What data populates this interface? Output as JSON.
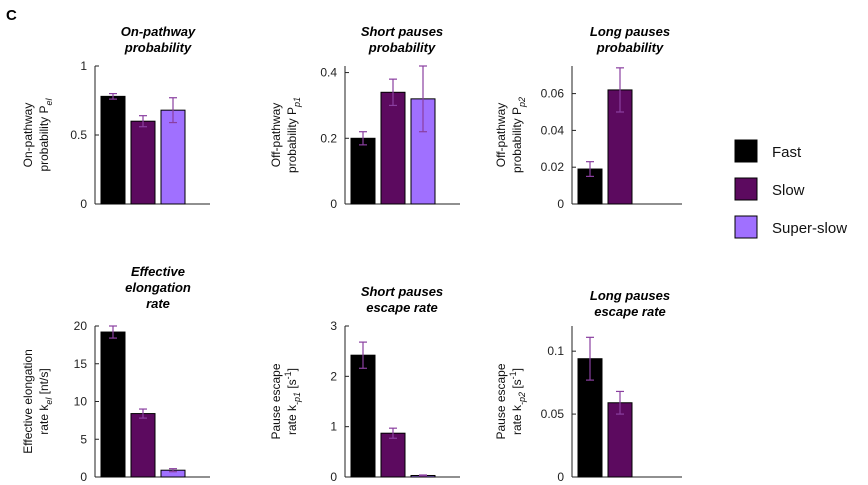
{
  "panel_label": "C",
  "colors": {
    "Fast": "#000000",
    "Slow": "#5c0a5f",
    "Super-slow": "#a070ff",
    "errorbar": "#8a3fa0"
  },
  "legend": [
    {
      "name": "Fast",
      "color": "#000000"
    },
    {
      "name": "Slow",
      "color": "#5c0a5f"
    },
    {
      "name": "Super-slow",
      "color": "#a070ff"
    }
  ],
  "chart_data": [
    {
      "type": "bar",
      "title_lines": [
        "On-pathway",
        "probability"
      ],
      "ylabel_lines": [
        "On-pathway",
        "probability  P"
      ],
      "ylabel_sub": "el",
      "categories": [
        "Fast",
        "Slow",
        "Super-slow"
      ],
      "values": [
        0.78,
        0.6,
        0.68
      ],
      "errors": [
        0.02,
        0.04,
        0.09
      ],
      "ylim": [
        0,
        1
      ],
      "yticks": [
        0,
        0.5,
        1
      ],
      "ytick_labels": [
        "0",
        "0.5",
        "1"
      ]
    },
    {
      "type": "bar",
      "title_lines": [
        "Short pauses",
        "probability"
      ],
      "ylabel_lines": [
        "Off-pathway",
        "probability  P"
      ],
      "ylabel_sub": "p1",
      "categories": [
        "Fast",
        "Slow",
        "Super-slow"
      ],
      "values": [
        0.2,
        0.34,
        0.32
      ],
      "errors": [
        0.02,
        0.04,
        0.1
      ],
      "ylim": [
        0,
        0.42
      ],
      "yticks": [
        0,
        0.2,
        0.4
      ],
      "ytick_labels": [
        "0",
        "0.2",
        "0.4"
      ]
    },
    {
      "type": "bar",
      "title_lines": [
        "Long pauses",
        "probability"
      ],
      "ylabel_lines": [
        "Off-pathway",
        "probability  P"
      ],
      "ylabel_sub": "p2",
      "categories": [
        "Fast",
        "Slow"
      ],
      "values": [
        0.019,
        0.062
      ],
      "errors": [
        0.004,
        0.012
      ],
      "ylim": [
        0,
        0.075
      ],
      "yticks": [
        0,
        0.02,
        0.04,
        0.06
      ],
      "ytick_labels": [
        "0",
        "0.02",
        "0.04",
        "0.06"
      ]
    },
    {
      "type": "bar",
      "title_lines": [
        "Effective",
        "elongation",
        "rate"
      ],
      "ylabel_lines": [
        "Effective elongation",
        "rate  k"
      ],
      "ylabel_sub": "el",
      "ylabel_tail": " [nt/s]",
      "categories": [
        "Fast",
        "Slow",
        "Super-slow"
      ],
      "values": [
        19.2,
        8.4,
        0.9
      ],
      "errors": [
        0.8,
        0.6,
        0.2
      ],
      "ylim": [
        0,
        20
      ],
      "yticks": [
        0,
        5,
        10,
        15,
        20
      ],
      "ytick_labels": [
        "0",
        "5",
        "10",
        "15",
        "20"
      ]
    },
    {
      "type": "bar",
      "title_lines": [
        "Short pauses",
        "escape rate"
      ],
      "ylabel_lines": [
        "Pause escape",
        "rate  k"
      ],
      "ylabel_sub": "-p1",
      "ylabel_tail": " [s",
      "ylabel_sup": "-1",
      "ylabel_end": "]",
      "categories": [
        "Fast",
        "Slow",
        "Super-slow"
      ],
      "values": [
        2.42,
        0.87,
        0.03
      ],
      "errors": [
        0.26,
        0.1,
        0.01
      ],
      "ylim": [
        0,
        3
      ],
      "yticks": [
        0,
        1,
        2,
        3
      ],
      "ytick_labels": [
        "0",
        "1",
        "2",
        "3"
      ]
    },
    {
      "type": "bar",
      "title_lines": [
        "Long pauses",
        "escape rate"
      ],
      "ylabel_lines": [
        "Pause escape",
        "rate  k"
      ],
      "ylabel_sub": "-p2",
      "ylabel_tail": " [s",
      "ylabel_sup": "-1",
      "ylabel_end": "]",
      "categories": [
        "Fast",
        "Slow"
      ],
      "values": [
        0.094,
        0.059
      ],
      "errors": [
        0.017,
        0.009
      ],
      "ylim": [
        0,
        0.12
      ],
      "yticks": [
        0,
        0.05,
        0.1
      ],
      "ytick_labels": [
        "0",
        "0.05",
        "0.1"
      ]
    }
  ]
}
